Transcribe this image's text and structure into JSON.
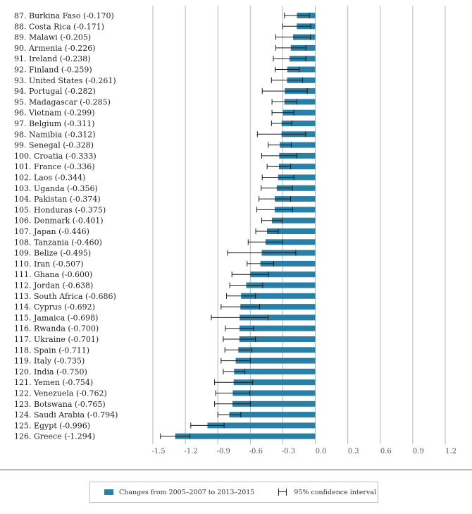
{
  "chart_data": {
    "type": "bar",
    "orientation": "horizontal",
    "xlim": [
      -1.5,
      1.2
    ],
    "xticks": [
      "-1.5",
      "-1.2",
      "-0.9",
      "-0.6",
      "-0.3",
      "0.0",
      "0.3",
      "0.6",
      "0.9",
      "1.2"
    ],
    "grid": true,
    "legend_position": "bottom",
    "colors": {
      "bar": "#2a7fa6",
      "ci": "#1a1a1a",
      "grid": "#b5b5b5"
    },
    "rows": [
      {
        "label": "87.  Burkina Faso (-0.170)",
        "value": -0.17,
        "ci": [
          -0.285,
          -0.055
        ]
      },
      {
        "label": "88.  Costa Rica (-0.171)",
        "value": -0.171,
        "ci": [
          -0.301,
          -0.041
        ]
      },
      {
        "label": "89.  Malawi (-0.205)",
        "value": -0.205,
        "ci": [
          -0.365,
          -0.045
        ]
      },
      {
        "label": "90.  Armenia (-0.226)",
        "value": -0.226,
        "ci": [
          -0.365,
          -0.087
        ]
      },
      {
        "label": "91.  Ireland (-0.238)",
        "value": -0.238,
        "ci": [
          -0.388,
          -0.088
        ]
      },
      {
        "label": "92.  Finland (-0.259)",
        "value": -0.259,
        "ci": [
          -0.37,
          -0.148
        ]
      },
      {
        "label": "93.  United States (-0.261)",
        "value": -0.261,
        "ci": [
          -0.405,
          -0.117
        ]
      },
      {
        "label": "94.  Portugal (-0.282)",
        "value": -0.282,
        "ci": [
          -0.49,
          -0.074
        ]
      },
      {
        "label": "95.  Madagascar (-0.285)",
        "value": -0.285,
        "ci": [
          -0.4,
          -0.17
        ]
      },
      {
        "label": "96.  Vietnam (-0.299)",
        "value": -0.299,
        "ci": [
          -0.4,
          -0.198
        ]
      },
      {
        "label": "97.  Belgium (-0.311)",
        "value": -0.311,
        "ci": [
          -0.405,
          -0.217
        ]
      },
      {
        "label": "98.  Namibia (-0.312)",
        "value": -0.312,
        "ci": [
          -0.535,
          -0.089
        ]
      },
      {
        "label": "99.  Senegal (-0.328)",
        "value": -0.328,
        "ci": [
          -0.435,
          -0.221
        ]
      },
      {
        "label": "100. Croatia (-0.333)",
        "value": -0.333,
        "ci": [
          -0.495,
          -0.171
        ]
      },
      {
        "label": "101. France (-0.336)",
        "value": -0.336,
        "ci": [
          -0.445,
          -0.227
        ]
      },
      {
        "label": "102. Laos (-0.344)",
        "value": -0.344,
        "ci": [
          -0.49,
          -0.198
        ]
      },
      {
        "label": "103. Uganda (-0.356)",
        "value": -0.356,
        "ci": [
          -0.5,
          -0.212
        ]
      },
      {
        "label": "104. Pakistan (-0.374)",
        "value": -0.374,
        "ci": [
          -0.52,
          -0.228
        ]
      },
      {
        "label": "105. Honduras (-0.375)",
        "value": -0.375,
        "ci": [
          -0.54,
          -0.21
        ]
      },
      {
        "label": "106. Denmark (-0.401)",
        "value": -0.401,
        "ci": [
          -0.495,
          -0.307
        ]
      },
      {
        "label": "107. Japan (-0.446)",
        "value": -0.446,
        "ci": [
          -0.55,
          -0.342
        ]
      },
      {
        "label": "108. Tanzania (-0.460)",
        "value": -0.46,
        "ci": [
          -0.62,
          -0.3
        ]
      },
      {
        "label": "109. Belize (-0.495)",
        "value": -0.495,
        "ci": [
          -0.81,
          -0.18
        ]
      },
      {
        "label": "110. Iran (-0.507)",
        "value": -0.507,
        "ci": [
          -0.63,
          -0.384
        ]
      },
      {
        "label": "111. Ghana (-0.600)",
        "value": -0.6,
        "ci": [
          -0.77,
          -0.43
        ]
      },
      {
        "label": "112. Jordan (-0.638)",
        "value": -0.638,
        "ci": [
          -0.79,
          -0.486
        ]
      },
      {
        "label": "113. South Africa (-0.686)",
        "value": -0.686,
        "ci": [
          -0.82,
          -0.552
        ]
      },
      {
        "label": "114. Cyprus (-0.692)",
        "value": -0.692,
        "ci": [
          -0.87,
          -0.514
        ]
      },
      {
        "label": "115. Jamaica (-0.698)",
        "value": -0.698,
        "ci": [
          -0.96,
          -0.436
        ]
      },
      {
        "label": "116. Rwanda (-0.700)",
        "value": -0.7,
        "ci": [
          -0.83,
          -0.57
        ]
      },
      {
        "label": "117. Ukraine (-0.701)",
        "value": -0.701,
        "ci": [
          -0.85,
          -0.552
        ]
      },
      {
        "label": "118. Spain (-0.711)",
        "value": -0.711,
        "ci": [
          -0.835,
          -0.587
        ]
      },
      {
        "label": "119. Italy (-0.735)",
        "value": -0.735,
        "ci": [
          -0.87,
          -0.6
        ]
      },
      {
        "label": "120. India (-0.750)",
        "value": -0.75,
        "ci": [
          -0.85,
          -0.65
        ]
      },
      {
        "label": "121. Yemen (-0.754)",
        "value": -0.754,
        "ci": [
          -0.93,
          -0.578
        ]
      },
      {
        "label": "122. Venezuela (-0.762)",
        "value": -0.762,
        "ci": [
          -0.92,
          -0.604
        ]
      },
      {
        "label": "123. Botswana (-0.765)",
        "value": -0.765,
        "ci": [
          -0.93,
          -0.6
        ]
      },
      {
        "label": "124. Saudi Arabia (-0.794)",
        "value": -0.794,
        "ci": [
          -0.9,
          -0.688
        ]
      },
      {
        "label": "125. Egypt (-0.996)",
        "value": -0.996,
        "ci": [
          -1.15,
          -0.842
        ]
      },
      {
        "label": "126. Greece (-1.294)",
        "value": -1.294,
        "ci": [
          -1.43,
          -1.158
        ]
      }
    ]
  },
  "legend": {
    "bar_label": "Changes from 2005–2007 to 2013–2015",
    "ci_label": "95% confidence interval"
  }
}
